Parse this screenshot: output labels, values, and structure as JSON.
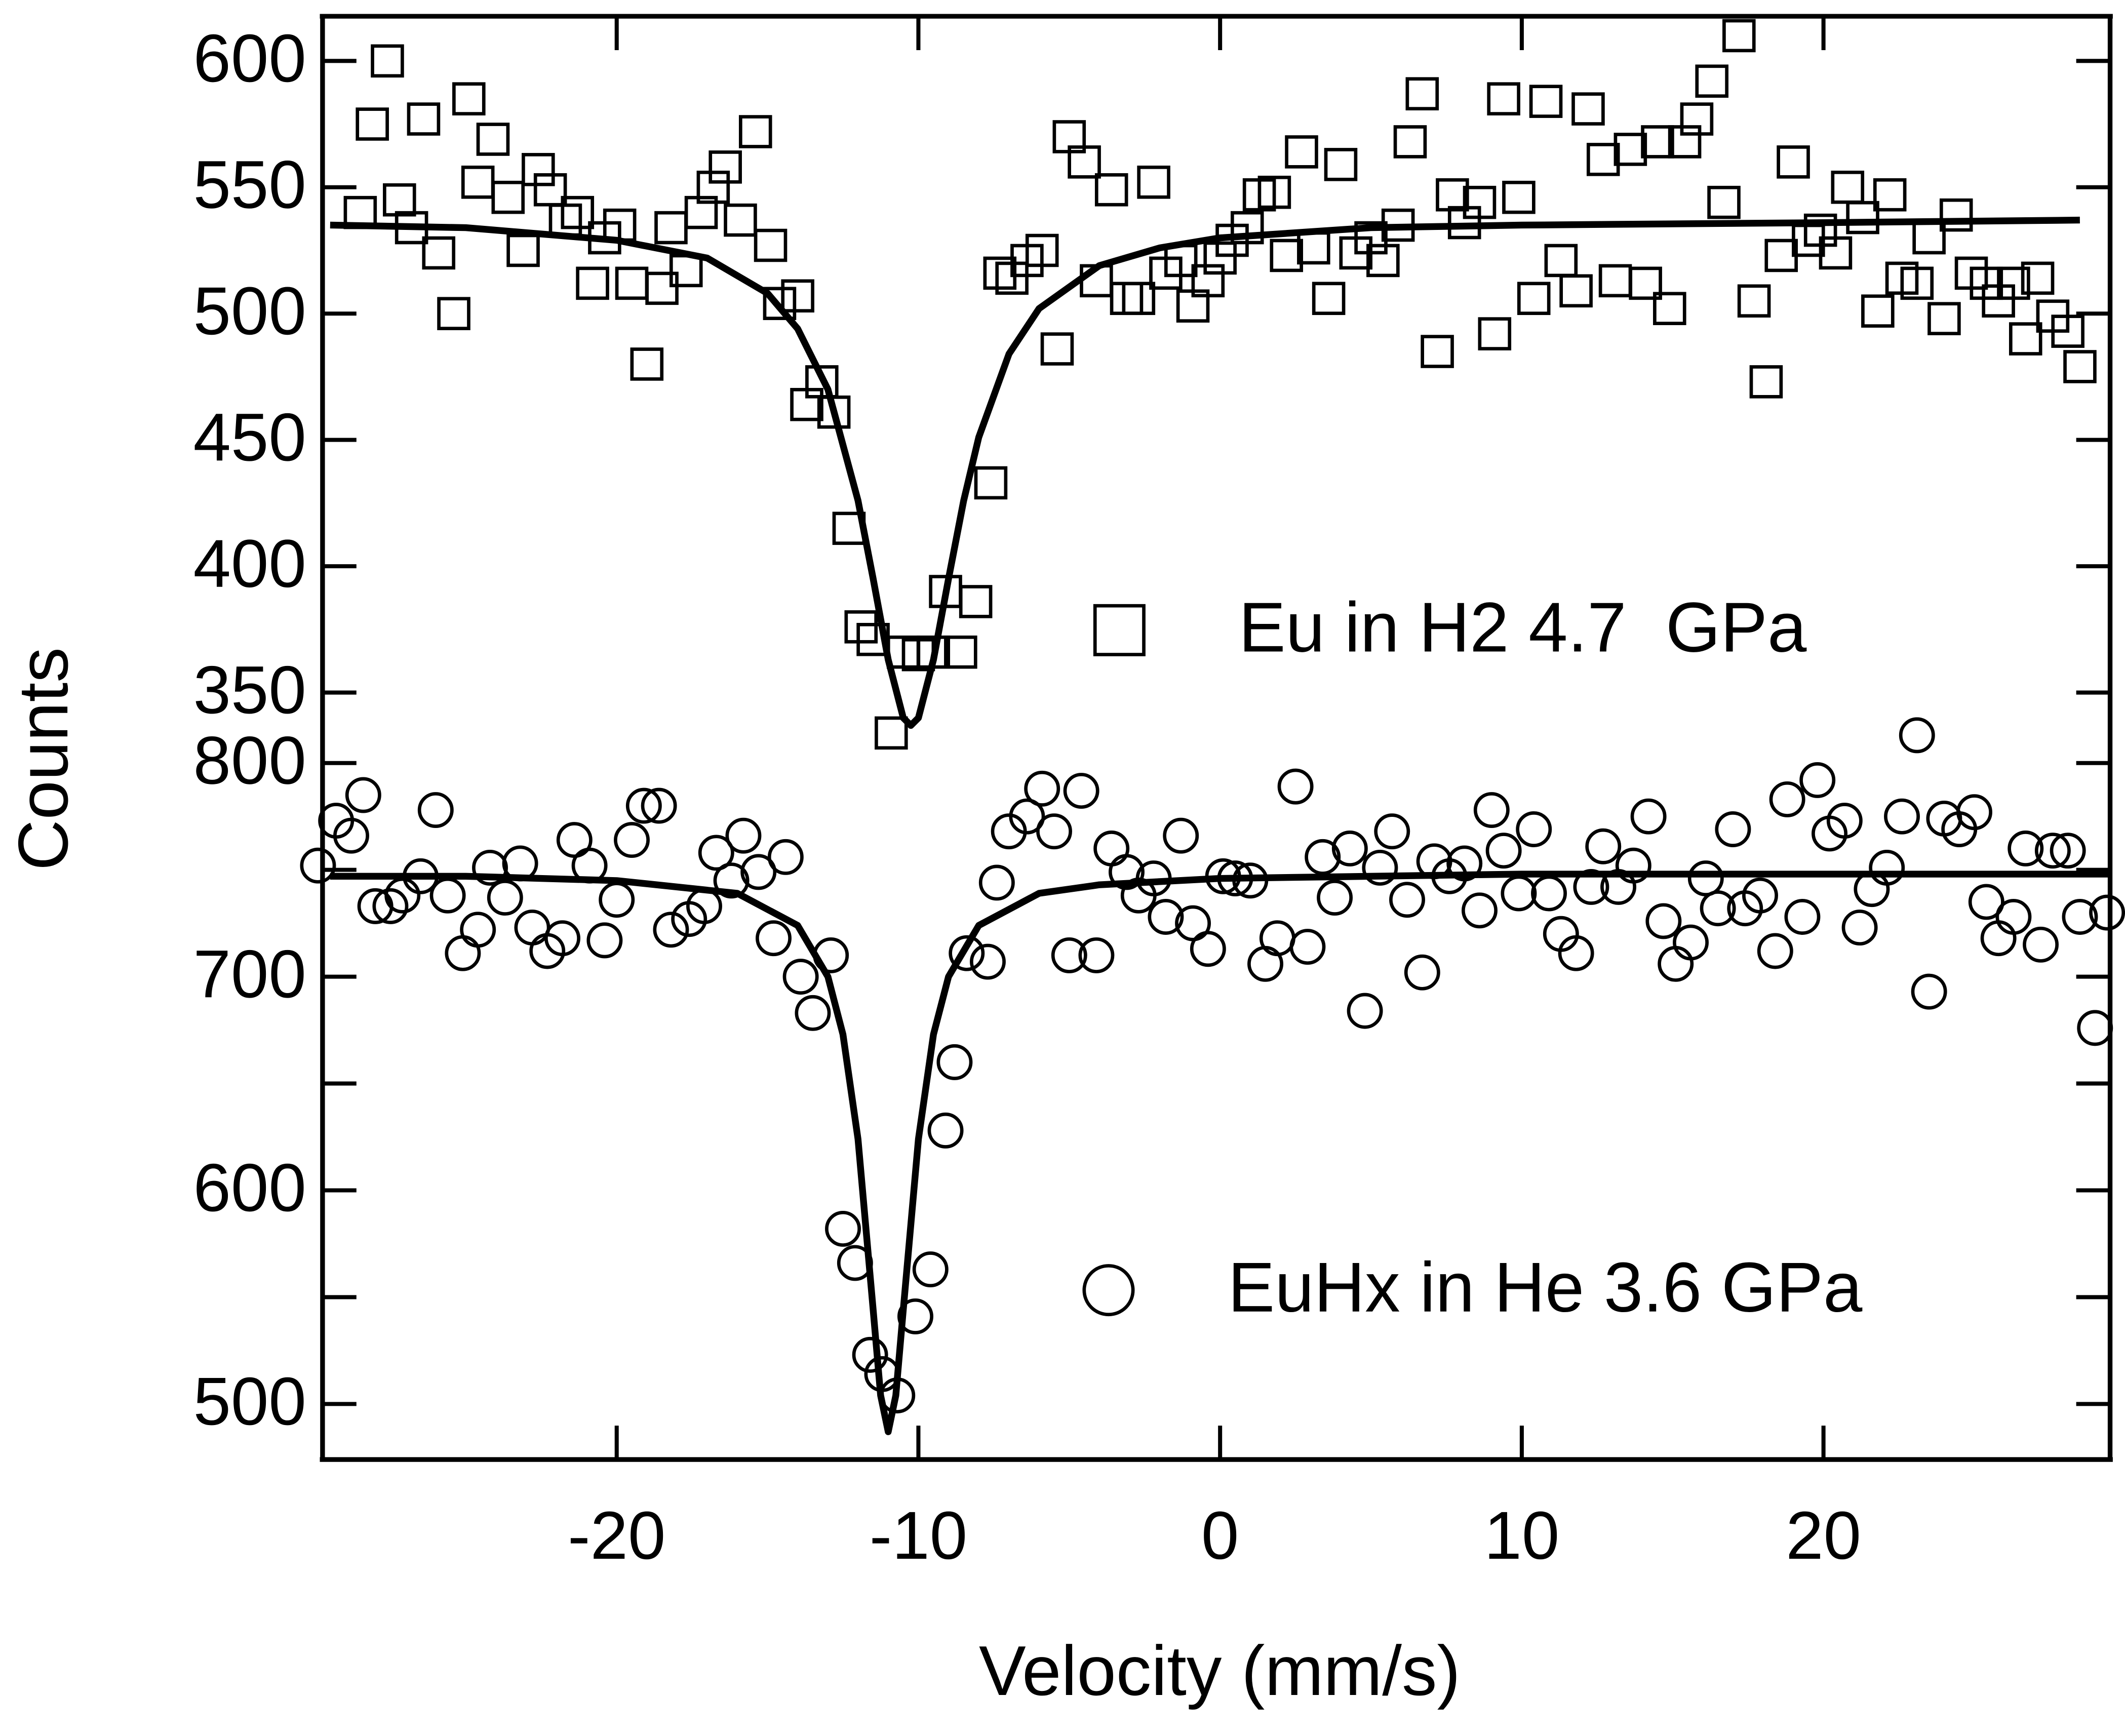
{
  "chart_data": [
    {
      "type": "scatter",
      "ylabel": "Counts",
      "xlim": [
        -29.75,
        29.5
      ],
      "ylim": [
        335,
        618
      ],
      "yticks": [
        350,
        400,
        450,
        500,
        550,
        600
      ],
      "legend": "lower right",
      "series": [
        {
          "name": "Eu in H2 4.7  GPa",
          "marker": "square",
          "color": "#000000",
          "x": [
            -28.5,
            -28.1,
            -27.6,
            -27.2,
            -26.8,
            -26.4,
            -25.9,
            -25.4,
            -24.9,
            -24.6,
            -24.1,
            -23.6,
            -23.1,
            -22.6,
            -22.2,
            -21.7,
            -21.3,
            -20.8,
            -20.4,
            -19.9,
            -19.5,
            -19.0,
            -18.5,
            -18.2,
            -17.7,
            -17.2,
            -16.8,
            -16.4,
            -15.9,
            -15.4,
            -14.9,
            -14.6,
            -14.0,
            -13.7,
            -13.2,
            -12.8,
            -12.3,
            -11.9,
            -11.5,
            -10.9,
            -10.5,
            -10.0,
            -9.5,
            -9.1,
            -8.6,
            -8.1,
            -7.6,
            -7.3,
            -6.9,
            -6.4,
            -5.9,
            -5.4,
            -5.0,
            -4.5,
            -4.1,
            -3.6,
            -3.1,
            -2.7,
            -2.2,
            -1.8,
            -1.3,
            -0.9,
            -0.4,
            0,
            0.4,
            0.9,
            1.3,
            1.8,
            2.2,
            2.7,
            3.1,
            3.6,
            4.0,
            4.5,
            5.0,
            5.4,
            5.9,
            6.3,
            6.7,
            7.2,
            7.7,
            8.1,
            8.6,
            9.1,
            9.4,
            9.9,
            10.4,
            10.8,
            11.3,
            11.8,
            12.2,
            12.7,
            13.1,
            13.6,
            14.1,
            14.5,
            14.9,
            15.4,
            15.8,
            16.3,
            16.7,
            17.2,
            17.7,
            18.1,
            18.6,
            19.0,
            19.5,
            19.9,
            20.4,
            20.8,
            21.3,
            21.8,
            22.2,
            22.6,
            23.1,
            23.5,
            24.0,
            24.4,
            24.9,
            25.4,
            25.8,
            26.3,
            26.7,
            27.1,
            27.6,
            28.1,
            28.5
          ],
          "values": [
            540,
            575,
            600,
            545,
            534,
            577,
            524,
            500,
            585,
            552,
            569,
            546,
            525,
            557,
            549,
            537,
            540,
            512,
            530,
            535,
            512,
            480,
            510,
            534,
            517,
            540,
            550,
            558,
            537,
            572,
            527,
            504,
            507,
            464,
            473,
            461,
            415,
            376,
            371,
            334,
            366,
            365,
            366,
            390,
            366,
            386,
            433,
            516,
            514,
            521,
            525,
            486,
            570,
            560,
            513,
            549,
            506,
            506,
            552,
            516,
            521,
            503,
            513,
            522,
            529,
            534,
            547,
            548,
            523,
            564,
            526,
            506,
            559,
            524,
            530,
            521,
            535,
            568,
            587,
            485,
            547,
            536,
            544,
            492,
            585,
            546,
            506,
            584,
            521,
            509,
            581,
            561,
            513,
            565,
            512,
            568,
            502,
            568,
            577,
            592,
            544,
            610,
            505,
            473,
            523,
            560,
            529,
            533,
            524,
            550,
            538,
            501,
            547,
            514,
            512,
            530,
            498,
            539,
            516,
            512,
            505,
            512,
            490,
            514,
            499,
            493,
            479
          ]
        },
        {
          "color": "#000000",
          "x": [
            -29.5,
            -25,
            -20,
            -17,
            -15,
            -14,
            -13,
            -12,
            -11.5,
            -11,
            -10.5,
            -10.25,
            -10,
            -9.5,
            -9,
            -8.5,
            -8,
            -7,
            -6,
            -4,
            -2,
            0,
            5,
            10,
            20,
            28.5
          ],
          "values": [
            535,
            534,
            529,
            522,
            508,
            494,
            470,
            426,
            395,
            363,
            340,
            337,
            340,
            363,
            395,
            426,
            451,
            484,
            502,
            519,
            526,
            530,
            534,
            535,
            536,
            537
          ]
        }
      ]
    },
    {
      "type": "scatter",
      "xlabel": "Velocity (mm/s)",
      "xlim": [
        -29.75,
        29.5
      ],
      "ylim": [
        474,
        811
      ],
      "xticks": [
        -20,
        -10,
        0,
        10,
        20
      ],
      "yticks": [
        500,
        600,
        700,
        800
      ],
      "yminor": [
        550,
        650,
        750
      ],
      "legend": "lower right",
      "series": [
        {
          "name": "EuHx in He 3.6 GPa",
          "marker": "circle",
          "color": "#000000",
          "x": [
            -29.9,
            -29.3,
            -28.8,
            -28.4,
            -28.0,
            -27.5,
            -27.1,
            -26.5,
            -26.0,
            -25.6,
            -25.1,
            -24.6,
            -24.2,
            -23.7,
            -23.2,
            -22.8,
            -22.3,
            -21.8,
            -21.4,
            -20.9,
            -20.4,
            -20.0,
            -19.5,
            -19.1,
            -18.6,
            -18.2,
            -17.6,
            -17.1,
            -16.7,
            -16.2,
            -15.8,
            -15.3,
            -14.8,
            -14.4,
            -13.9,
            -13.5,
            -12.9,
            -12.5,
            -12.1,
            -11.6,
            -11.2,
            -10.7,
            -10.1,
            -9.6,
            -9.1,
            -8.8,
            -8.4,
            -7.7,
            -7.4,
            -7.0,
            -6.4,
            -5.9,
            -5.5,
            -5.0,
            -4.6,
            -4.1,
            -3.6,
            -3.1,
            -2.7,
            -2.2,
            -1.8,
            -1.3,
            -0.9,
            -0.4,
            0.1,
            0.5,
            1.0,
            1.5,
            1.9,
            2.5,
            2.9,
            3.4,
            3.8,
            4.3,
            4.8,
            5.3,
            5.7,
            6.2,
            6.7,
            7.1,
            7.6,
            8.1,
            8.6,
            9.0,
            9.4,
            9.9,
            10.4,
            10.9,
            11.3,
            11.8,
            12.3,
            12.7,
            13.2,
            13.7,
            14.2,
            14.7,
            15.1,
            15.6,
            16.1,
            16.5,
            17.0,
            17.4,
            17.9,
            18.4,
            18.8,
            19.3,
            19.8,
            20.2,
            20.7,
            21.2,
            21.6,
            22.1,
            22.6,
            23.1,
            23.5,
            24.0,
            24.5,
            25.0,
            25.4,
            25.8,
            26.3,
            26.7,
            27.2,
            27.6,
            28.1,
            28.5,
            29.0,
            29.4
          ],
          "values": [
            752,
            773,
            766,
            785,
            733,
            733,
            738,
            747,
            778,
            738,
            711,
            722,
            751,
            737,
            753,
            723,
            712,
            718,
            764,
            752,
            717,
            736,
            764,
            780,
            780,
            722,
            727,
            733,
            758,
            745,
            766,
            749,
            718,
            756,
            700,
            683,
            710,
            582,
            566,
            523,
            514,
            504,
            541,
            563,
            628,
            660,
            711,
            707,
            744,
            768,
            775,
            788,
            768,
            710,
            787,
            710,
            760,
            749,
            738,
            746,
            728,
            766,
            725,
            713,
            747,
            746,
            745,
            706,
            718,
            789,
            714,
            756,
            737,
            760,
            684,
            751,
            768,
            736,
            702,
            754,
            747,
            753,
            731,
            778,
            759,
            739,
            769,
            739,
            720,
            711,
            742,
            761,
            742,
            752,
            775,
            726,
            706,
            716,
            746,
            732,
            769,
            732,
            738,
            712,
            783,
            728,
            792,
            767,
            773,
            723,
            741,
            751,
            775,
            813,
            693,
            774,
            769,
            777,
            735,
            718,
            728,
            760,
            715,
            759,
            759,
            728,
            676,
            730
          ]
        },
        {
          "color": "#000000",
          "x": [
            -29.5,
            -25,
            -20,
            -16,
            -14,
            -13,
            -12.5,
            -12,
            -11.5,
            -11.25,
            -11,
            -10.75,
            -10.5,
            -10,
            -9.5,
            -9,
            -8,
            -6,
            -4,
            0,
            5,
            10,
            20,
            29.5
          ],
          "values": [
            747,
            747,
            745,
            739,
            724,
            700,
            673,
            624,
            544,
            504,
            487,
            504,
            544,
            624,
            673,
            700,
            724,
            739,
            743,
            746,
            747,
            748,
            748,
            748
          ]
        }
      ]
    }
  ]
}
